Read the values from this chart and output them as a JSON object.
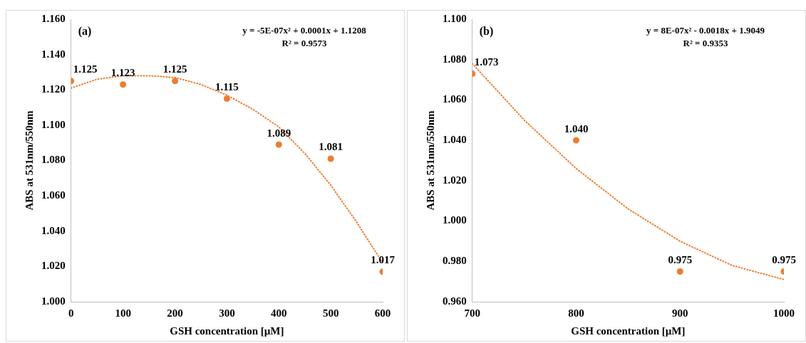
{
  "chart_data": [
    {
      "type": "scatter",
      "xlabel": "GSH concentration [µM]",
      "ylabel": "ABS at 531nm/550nm",
      "annotations": [
        "(a)",
        "y = -5E-07x² + 0.0001x + 1.1208",
        "R² = 0.9573"
      ],
      "x": [
        0,
        100,
        200,
        300,
        400,
        500,
        600
      ],
      "xlim": [
        0,
        600
      ],
      "xticks": [
        0,
        100,
        200,
        300,
        400,
        500,
        600
      ],
      "ylim": [
        1.0,
        1.16
      ],
      "yticks": [
        {
          "value": 1.0,
          "label": "1.000"
        },
        {
          "value": 1.02,
          "label": "1.020"
        },
        {
          "value": 1.04,
          "label": "1.040"
        },
        {
          "value": 1.06,
          "label": "1.060"
        },
        {
          "value": 1.08,
          "label": "1.080"
        },
        {
          "value": 1.1,
          "label": "1.100"
        },
        {
          "value": 1.12,
          "label": "1.120"
        },
        {
          "value": 1.14,
          "label": "1.140"
        },
        {
          "value": 1.16,
          "label": "1.160"
        }
      ],
      "marker": "circle",
      "series": [
        {
          "type": "scatter",
          "color": "#ed7d31",
          "values": [
            1.125,
            1.123,
            1.125,
            1.115,
            1.089,
            1.081,
            1.017
          ],
          "value_labels": [
            "1.125",
            "1.123",
            "1.125",
            "1.115",
            "1.089",
            "1.081",
            "1.017"
          ]
        },
        {
          "type": "line",
          "color": "#ed7d31",
          "line_style": "dotted",
          "marker": "none",
          "x": [
            0,
            50,
            100,
            150,
            200,
            250,
            300,
            350,
            400,
            450,
            500,
            550,
            600
          ],
          "values": [
            1.121,
            1.126,
            1.128,
            1.128,
            1.127,
            1.123,
            1.117,
            1.109,
            1.099,
            1.084,
            1.066,
            1.045,
            1.022
          ]
        }
      ]
    },
    {
      "type": "scatter",
      "xlabel": "GSH concentration [µM]",
      "ylabel": "ABS at 531nm/550nm",
      "annotations": [
        "(b)",
        "y = 8E-07x² - 0.0018x + 1.9049",
        "R² = 0.9353"
      ],
      "x": [
        700,
        800,
        900,
        1000
      ],
      "xlim": [
        700,
        1000
      ],
      "xticks": [
        700,
        800,
        900,
        1000
      ],
      "ylim": [
        0.96,
        1.1
      ],
      "yticks": [
        {
          "value": 0.96,
          "label": "0.960"
        },
        {
          "value": 0.98,
          "label": "0.980"
        },
        {
          "value": 1.0,
          "label": "1.000"
        },
        {
          "value": 1.02,
          "label": "1.020"
        },
        {
          "value": 1.04,
          "label": "1.040"
        },
        {
          "value": 1.06,
          "label": "1.060"
        },
        {
          "value": 1.08,
          "label": "1.080"
        },
        {
          "value": 1.1,
          "label": "1.100"
        }
      ],
      "marker": "circle",
      "series": [
        {
          "type": "scatter",
          "color": "#ed7d31",
          "values": [
            1.073,
            1.04,
            0.975,
            0.975
          ],
          "value_labels": [
            "1.073",
            "1.040",
            "0.975",
            "0.975"
          ]
        },
        {
          "type": "line",
          "color": "#ed7d31",
          "line_style": "dotted",
          "marker": "none",
          "x": [
            700,
            750,
            800,
            850,
            900,
            950,
            1000
          ],
          "values": [
            1.078,
            1.05,
            1.026,
            1.006,
            0.99,
            0.978,
            0.971
          ]
        }
      ]
    }
  ]
}
